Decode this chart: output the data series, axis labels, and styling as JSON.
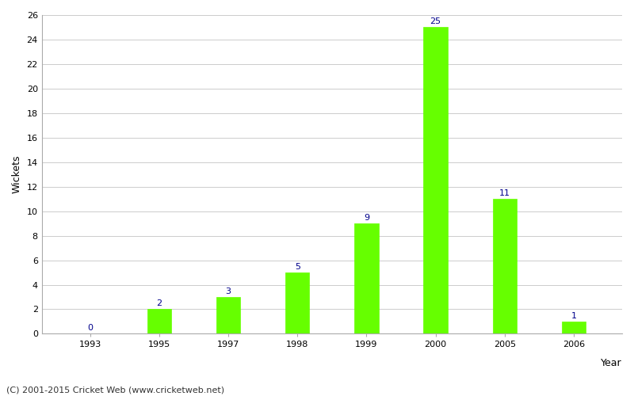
{
  "categories": [
    "1993",
    "1995",
    "1997",
    "1998",
    "1999",
    "2000",
    "2005",
    "2006"
  ],
  "values": [
    0,
    2,
    3,
    5,
    9,
    25,
    11,
    1
  ],
  "bar_color": "#66ff00",
  "label_color": "#00008B",
  "xlabel": "Year",
  "ylabel": "Wickets",
  "ylim": [
    0,
    26
  ],
  "yticks": [
    0,
    2,
    4,
    6,
    8,
    10,
    12,
    14,
    16,
    18,
    20,
    22,
    24,
    26
  ],
  "footnote": "(C) 2001-2015 Cricket Web (www.cricketweb.net)",
  "background_color": "#ffffff",
  "grid_color": "#cccccc",
  "bar_width": 0.35,
  "label_fontsize": 8,
  "axis_label_fontsize": 9,
  "tick_fontsize": 8,
  "footnote_fontsize": 8
}
